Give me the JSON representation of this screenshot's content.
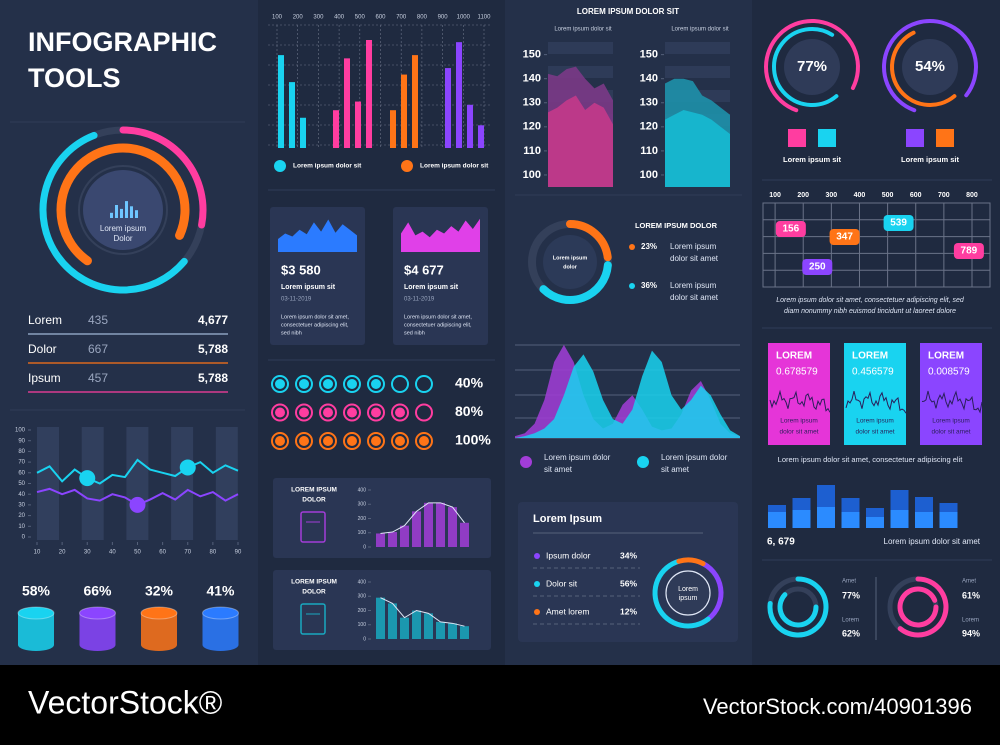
{
  "header": {
    "title_lines": [
      "INFOGRAPHIC",
      "TOOLS"
    ]
  },
  "ring_panel": {
    "center_lines": [
      "Lorem ipsum",
      "Dolor"
    ],
    "arcs": [
      {
        "color": "#ff3da0",
        "value": 28
      },
      {
        "color": "#19d3f0",
        "value": 58
      },
      {
        "color": "#ff7417",
        "value": 72
      }
    ]
  },
  "table": {
    "rows": [
      [
        "Lorem",
        "435",
        "4,677"
      ],
      [
        "Dolor",
        "667",
        "5,788"
      ],
      [
        "Ipsum",
        "457",
        "5,788"
      ]
    ]
  },
  "wave_chart": {
    "type": "line",
    "x": [
      10,
      15,
      20,
      25,
      30,
      35,
      40,
      45,
      50,
      55,
      60,
      65,
      70,
      75,
      80,
      85,
      90
    ],
    "xlim": [
      10,
      90
    ],
    "ylim": [
      0,
      100
    ],
    "xticks": [
      10,
      20,
      30,
      40,
      50,
      60,
      70,
      80,
      90
    ],
    "yticks": [
      0,
      10,
      20,
      30,
      40,
      50,
      60,
      70,
      80,
      90,
      100
    ],
    "series": [
      {
        "color": "#19d3f0",
        "values": [
          60,
          66,
          52,
          63,
          55,
          50,
          58,
          56,
          72,
          63,
          60,
          57,
          65,
          70,
          60,
          67,
          62
        ],
        "highlight": [
          4,
          12
        ]
      },
      {
        "color": "#8b45ff",
        "values": [
          42,
          45,
          40,
          44,
          36,
          34,
          40,
          37,
          30,
          35,
          41,
          35,
          44,
          38,
          42,
          34,
          40
        ],
        "highlight": [
          8
        ]
      }
    ]
  },
  "cylinders": [
    {
      "label": "58%",
      "color": "#19d3f0"
    },
    {
      "label": "66%",
      "color": "#8b45ff"
    },
    {
      "label": "32%",
      "color": "#ff7417"
    },
    {
      "label": "41%",
      "color": "#2b7bff"
    }
  ],
  "bar_chart": {
    "type": "bar",
    "xticks": [
      100,
      200,
      300,
      400,
      500,
      600,
      700,
      800,
      900,
      1000,
      1100
    ],
    "series": [
      {
        "color": "#19d3f0",
        "values": [
          86,
          61,
          28
        ]
      },
      {
        "color": "#ff3da0",
        "values": [
          35,
          83,
          43,
          100
        ]
      },
      {
        "color": "#ff7417",
        "values": [
          35,
          68,
          86
        ]
      },
      {
        "color": "#8b45ff",
        "values": [
          74,
          98,
          40,
          21
        ]
      }
    ],
    "legend": [
      {
        "color": "#19d3f0",
        "label": "Lorem ipsum dolor sit"
      },
      {
        "color": "#ff7417",
        "label": "Lorem ipsum dolor sit"
      }
    ]
  },
  "stat_cards": [
    {
      "amount": "$3 580",
      "title": "Lorem ipsum sit",
      "date": "03-11-2019",
      "text_lines": [
        "Lorem ipsum dolor sit amet,",
        "consectetuer adipiscing elit,",
        "sed nibh"
      ],
      "color": "#2b7bff",
      "values": [
        35,
        50,
        42,
        60,
        48,
        80,
        55,
        88,
        52,
        75,
        60,
        45
      ]
    },
    {
      "amount": "$4 677",
      "title": "Lorem ipsum sit",
      "date": "03-11-2019",
      "text_lines": [
        "Lorem ipsum dolor sit amet,",
        "consectetuer adipiscing elit,",
        "sed nibh"
      ],
      "color": "#e040e8",
      "values": [
        50,
        80,
        45,
        55,
        40,
        60,
        50,
        70,
        55,
        85,
        62,
        90
      ]
    }
  ],
  "dot_rows": [
    {
      "label": "40%",
      "color": "#19d3f0",
      "count": 7,
      "filled": 5
    },
    {
      "label": "80%",
      "color": "#ff3da0",
      "count": 7,
      "filled": 6
    },
    {
      "label": "100%",
      "color": "#ff7417",
      "count": 7,
      "filled": 7
    }
  ],
  "mini_charts": [
    {
      "title_lines": [
        "LOREM IPSUM",
        "DOLOR"
      ],
      "color": "#a23dd8",
      "ylim": [
        0,
        400
      ],
      "yticks": [
        0,
        100,
        200,
        300,
        400
      ],
      "values": [
        95,
        105,
        150,
        250,
        310,
        310,
        280,
        170
      ]
    },
    {
      "title_lines": [
        "LOREM IPSUM",
        "DOLOR"
      ],
      "color": "#19a8c0",
      "ylim": [
        0,
        400
      ],
      "yticks": [
        0,
        100,
        200,
        300,
        400
      ],
      "values": [
        290,
        250,
        150,
        200,
        180,
        120,
        110,
        90
      ]
    }
  ],
  "area_panel": {
    "title": "LOREM IPSUM DOLOR SIT",
    "ylim": [
      95,
      154
    ],
    "charts": [
      {
        "label": "Lorem ipsum dolor sit",
        "yticks": [
          150,
          140,
          130,
          120,
          110,
          100
        ],
        "series": [
          {
            "color": "#7a3a86",
            "values": [
              142,
              141,
              144,
              145,
              140,
              136,
              138,
              131
            ]
          },
          {
            "color": "#c23a8a",
            "values": [
              126,
              128,
              131,
              133,
              127,
              130,
              128,
              121
            ]
          }
        ]
      },
      {
        "label": "Lorem ipsum dolor sit",
        "yticks": [
          150,
          140,
          130,
          120,
          110,
          100
        ],
        "series": [
          {
            "color": "#1e8fa8",
            "values": [
              138,
              140,
              140,
              139,
              133,
              131,
              128,
              125
            ]
          },
          {
            "color": "#17b8d0",
            "values": [
              123,
              125,
              127,
              126,
              125,
              123,
              120,
              117
            ]
          }
        ]
      }
    ]
  },
  "donut_panel": {
    "title": "LOREM IPSUM DOLOR",
    "center_lines": [
      "Lorem ipsum",
      "dolor"
    ],
    "items": [
      {
        "label": "23%",
        "value": 23,
        "color": "#ff7417",
        "text_lines": [
          "Lorem ipsum",
          "dolor sit amet"
        ]
      },
      {
        "label": "36%",
        "value": 36,
        "color": "#19d3f0",
        "text_lines": [
          "Lorem ipsum",
          "dolor sit amet"
        ]
      }
    ]
  },
  "wave_area": {
    "series": [
      {
        "color": "#a23dd8",
        "values": [
          2,
          5,
          15,
          40,
          80,
          98,
          80,
          45,
          20,
          10,
          15,
          35,
          45,
          30,
          12,
          8,
          10,
          25,
          50,
          60,
          40,
          15,
          5,
          2
        ],
        "legend_lines": [
          "Lorem ipsum dolor",
          "sit amet"
        ]
      },
      {
        "color": "#19d3f0",
        "values": [
          0,
          2,
          5,
          10,
          20,
          45,
          75,
          88,
          70,
          40,
          20,
          15,
          30,
          65,
          92,
          80,
          45,
          30,
          40,
          55,
          45,
          25,
          8,
          2
        ],
        "legend_lines": [
          "Lorem ipsum dolor",
          "sit amet"
        ]
      }
    ]
  },
  "summary_card": {
    "title": "Lorem Ipsum",
    "center_lines": [
      "Lorem",
      "ipsum"
    ],
    "items": [
      {
        "name": "Ipsum dolor",
        "label": "34%",
        "value": 34,
        "color": "#8b45ff"
      },
      {
        "name": "Dolor sit",
        "label": "56%",
        "value": 56,
        "color": "#19d3f0"
      },
      {
        "name": "Amet lorem",
        "label": "12%",
        "value": 12,
        "color": "#ff7417"
      }
    ]
  },
  "rings": [
    {
      "label": "77%",
      "legend": "Lorem ipsum sit",
      "arcs": [
        {
          "color": "#ff3da0",
          "value": 77
        },
        {
          "color": "#19d3f0",
          "value": 70
        }
      ]
    },
    {
      "label": "54%",
      "legend": "Lorem ipsum sit",
      "arcs": [
        {
          "color": "#8b45ff",
          "value": 80
        },
        {
          "color": "#ff7417",
          "value": 54
        }
      ]
    }
  ],
  "tag_grid": {
    "xlim": [
      57,
      864
    ],
    "xticks": [
      100,
      200,
      300,
      400,
      500,
      600,
      700,
      800
    ],
    "tags": [
      {
        "value": 156,
        "color": "#ff3da0"
      },
      {
        "value": 347,
        "color": "#ff7417"
      },
      {
        "value": 539,
        "color": "#19d3f0"
      },
      {
        "value": 250,
        "color": "#8b45ff"
      },
      {
        "value": 789,
        "color": "#ff3da0"
      }
    ],
    "text_lines": [
      "Lorem ipsum dolor sit amet, consectetuer adipiscing elit, sed",
      "diam nonummy nibh euismod tincidunt ut laoreet dolore"
    ]
  },
  "value_cards": [
    {
      "title": "LOREM",
      "value": "0.678579",
      "color": "#e535d8",
      "text_lines": [
        "Lorem ipsum",
        "dolor sit amet"
      ]
    },
    {
      "title": "LOREM",
      "value": "0.456579",
      "color": "#19d3f0",
      "text_lines": [
        "Lorem ipsum",
        "dolor sit amet"
      ]
    },
    {
      "title": "LOREM",
      "value": "0.008579",
      "color": "#8b45ff",
      "text_lines": [
        "Lorem ipsum",
        "dolor sit amet"
      ]
    }
  ],
  "caption": "Lorem ipsum dolor sit amet, consectetuer adipiscing elit",
  "pair_bars": {
    "series": [
      {
        "color": "#1d5fd0",
        "values": [
          46,
          60,
          86,
          60,
          40,
          76,
          62,
          50
        ]
      },
      {
        "color": "#2b8bff",
        "values": [
          32,
          36,
          42,
          32,
          22,
          36,
          32,
          32
        ]
      }
    ],
    "total": "6, 679",
    "label": "Lorem ipsum dolor sit amet"
  },
  "small_rings": [
    {
      "color": "#19d3f0",
      "items": [
        {
          "name": "Amet",
          "label": "77%",
          "value": 77
        },
        {
          "name": "Lorem",
          "label": "62%",
          "value": 62
        }
      ]
    },
    {
      "color": "#ff3da0",
      "items": [
        {
          "name": "Amet",
          "label": "61%",
          "value": 61
        },
        {
          "name": "Lorem",
          "label": "94%",
          "value": 94
        }
      ]
    }
  ],
  "footer": {
    "brand": "VectorStock®",
    "url": "VectorStock.com/40901396"
  }
}
